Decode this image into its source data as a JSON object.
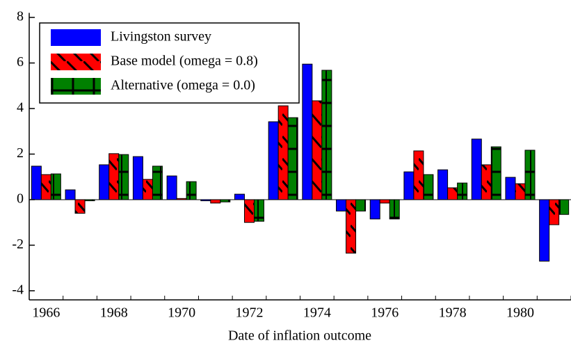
{
  "chart_data": {
    "type": "bar",
    "x_label": "Date of inflation outcome",
    "categories": [
      "1966",
      null,
      "1968",
      null,
      "1970",
      null,
      "1972",
      null,
      "1974",
      null,
      "1976",
      null,
      "1978",
      null,
      "1980",
      null
    ],
    "series": [
      {
        "name": "Livingston survey",
        "color": "#0000ff",
        "values": [
          1.47,
          0.43,
          1.53,
          1.89,
          1.04,
          -0.05,
          0.24,
          3.42,
          5.95,
          -0.5,
          -0.85,
          1.22,
          1.31,
          2.66,
          0.98,
          -2.7
        ]
      },
      {
        "name": "Base model (omega = 0.8)",
        "color": "#ff0000",
        "values": [
          1.1,
          -0.6,
          2.02,
          0.89,
          0.05,
          -0.15,
          -1.0,
          4.12,
          4.34,
          -2.35,
          -0.15,
          2.14,
          0.52,
          1.53,
          0.7,
          -1.1
        ]
      },
      {
        "name": "Alternative (omega = 0.0)",
        "color": "#008000",
        "values": [
          1.13,
          -0.05,
          1.98,
          1.47,
          0.79,
          -0.1,
          -0.95,
          3.6,
          5.68,
          -0.5,
          -0.85,
          1.1,
          0.73,
          2.32,
          2.17,
          -0.65
        ]
      }
    ],
    "ylim": [
      -4.4,
      8.2
    ],
    "yticks": [
      -4,
      -2,
      0,
      2,
      4,
      6,
      8
    ],
    "legend": "upper-left"
  }
}
